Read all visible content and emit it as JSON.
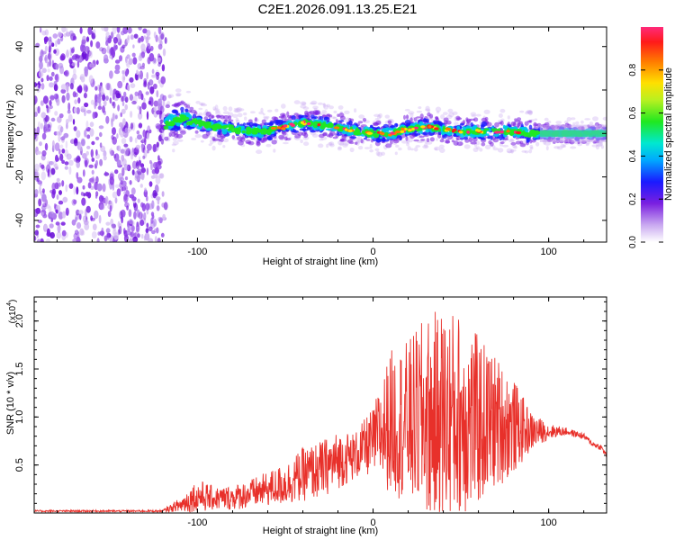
{
  "title": "C2E1.2026.091.13.25.E21",
  "chart_data": [
    {
      "type": "heatmap",
      "name": "spectrogram",
      "xlabel": "Height of straight line (km)",
      "ylabel": "Frequency (Hz)",
      "xlim": [
        -193,
        133
      ],
      "ylim": [
        -50,
        49
      ],
      "xticks": [
        -100,
        0,
        100
      ],
      "yticks": [
        -40,
        -20,
        0,
        20,
        40
      ],
      "colorbar": {
        "label": "Normalized spectral amplitude",
        "range": [
          0.0,
          1.0
        ],
        "ticks": [
          0.0,
          0.2,
          0.4,
          0.6,
          0.8
        ]
      },
      "noise_region_x": [
        -193,
        -118
      ],
      "signal_ridge": {
        "x": [
          -118,
          -110,
          -100,
          -90,
          -80,
          -70,
          -60,
          -50,
          -40,
          -30,
          -20,
          -10,
          0,
          10,
          20,
          30,
          40,
          50,
          60,
          70,
          80,
          90,
          100,
          110,
          120,
          133
        ],
        "freq": [
          4,
          7,
          5,
          3,
          2,
          1,
          1,
          3,
          5,
          4,
          3,
          1,
          0,
          0,
          2,
          3,
          2,
          1,
          1,
          1,
          1,
          0,
          0,
          0,
          0,
          0
        ]
      }
    },
    {
      "type": "line",
      "name": "snr",
      "xlabel": "Height of straight line (km)",
      "ylabel": "SNR (10 * v/v)",
      "yscale_label": "(x10",
      "yscale_exp": "4",
      "xlim": [
        -193,
        133
      ],
      "ylim": [
        0,
        2.25
      ],
      "xticks": [
        -100,
        0,
        100
      ],
      "yticks": [
        0.5,
        1.0,
        1.5,
        2.0
      ],
      "ytick_labels": [
        "0.5",
        "1.0",
        "1.5",
        "2.0"
      ],
      "series": [
        {
          "name": "SNR",
          "color": "#e8302a",
          "envelope": {
            "x": [
              -193,
              -120,
              -110,
              -100,
              -90,
              -80,
              -70,
              -60,
              -50,
              -40,
              -30,
              -20,
              -10,
              0,
              10,
              20,
              30,
              40,
              50,
              60,
              70,
              80,
              90,
              100,
              110,
              120,
              125,
              130,
              133
            ],
            "mid": [
              0.02,
              0.02,
              0.08,
              0.18,
              0.15,
              0.16,
              0.2,
              0.25,
              0.3,
              0.4,
              0.45,
              0.55,
              0.6,
              0.75,
              0.95,
              0.95,
              1.0,
              1.0,
              1.0,
              0.95,
              0.95,
              0.9,
              0.85,
              0.85,
              0.85,
              0.8,
              0.72,
              0.68,
              0.6
            ],
            "amp": [
              0.01,
              0.01,
              0.08,
              0.18,
              0.12,
              0.13,
              0.15,
              0.18,
              0.22,
              0.28,
              0.3,
              0.3,
              0.25,
              0.35,
              0.75,
              0.85,
              1.05,
              1.15,
              1.1,
              0.9,
              0.7,
              0.5,
              0.2,
              0.08,
              0.04,
              0.03,
              0.03,
              0.03,
              0.03
            ]
          }
        }
      ]
    }
  ]
}
